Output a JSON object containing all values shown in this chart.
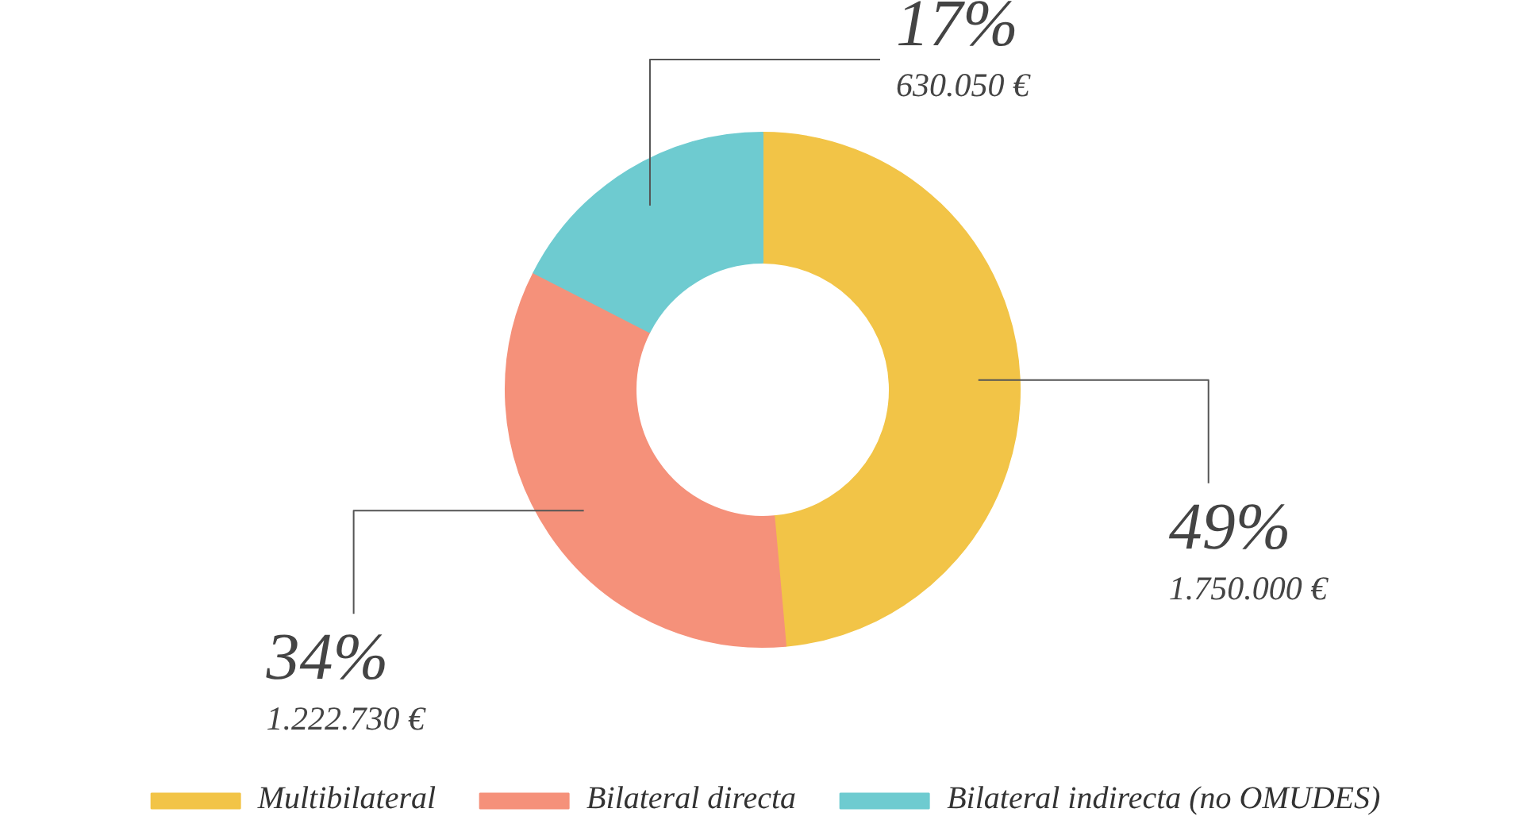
{
  "chart_data": {
    "type": "donut",
    "categories": [
      "Multibilateral",
      "Bilateral directa",
      "Bilateral indirecta (no OMUDES)"
    ],
    "values": [
      1750000,
      1222730,
      630050
    ],
    "colors": [
      "#f2c447",
      "#f5917a",
      "#6ecbd0"
    ],
    "value_labels": [
      "49%\n1.750.000 €",
      "34%\n1.222.730 €",
      "17%\n630.050 €"
    ],
    "legend": "bottom"
  }
}
